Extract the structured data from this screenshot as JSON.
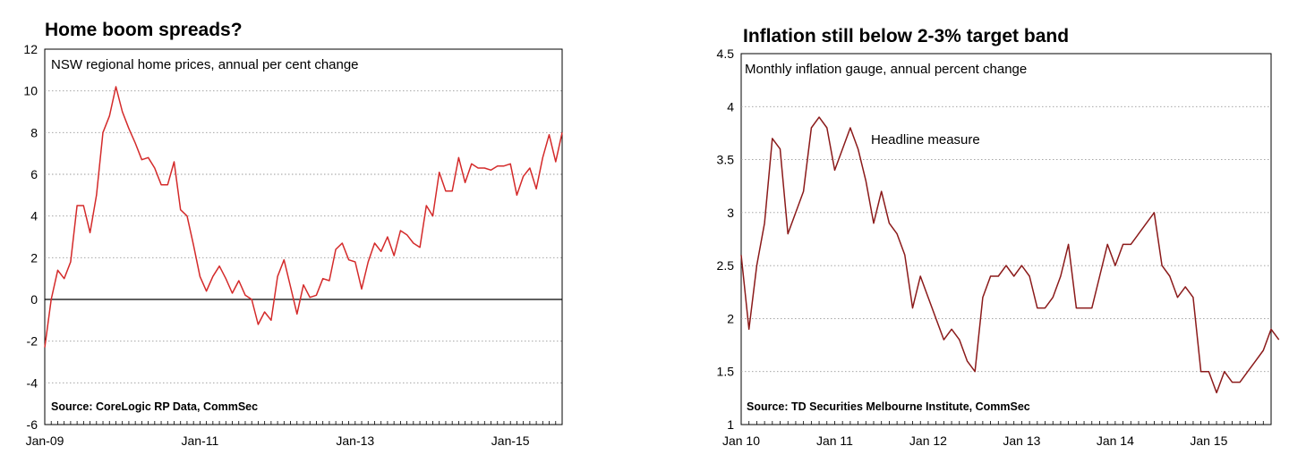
{
  "chart_data": [
    {
      "type": "line",
      "title": "Home boom spreads?",
      "subtitle": "NSW regional home prices, annual per cent change",
      "source": "Source: CoreLogic RP Data, CommSec",
      "xlabel": "",
      "ylabel": "",
      "ylim": [
        -6,
        12
      ],
      "y_ticks": [
        "12",
        "10",
        "8",
        "6",
        "4",
        "2",
        "0",
        "-2",
        "-4",
        "-6"
      ],
      "x_ticks": [
        "Jan-09",
        "Jan-11",
        "Jan-13",
        "Jan-15"
      ],
      "x_range": [
        "2009-01",
        "2015-09"
      ],
      "grid": "horizontal dotted",
      "line_color": "#d42a2a",
      "series": [
        {
          "values": [
            -2.3,
            0.0,
            1.4,
            1.0,
            1.8,
            4.5,
            4.5,
            3.2,
            5.0,
            8.0,
            8.8,
            10.2,
            9.0,
            8.2,
            7.5,
            6.7,
            6.8,
            6.3,
            5.5,
            5.5,
            6.6,
            4.3,
            4.0,
            2.6,
            1.1,
            0.4,
            1.1,
            1.6,
            1.0,
            0.3,
            0.9,
            0.2,
            0.0,
            -1.2,
            -0.6,
            -1.0,
            1.1,
            1.9,
            0.6,
            -0.7,
            0.7,
            0.1,
            0.2,
            1.0,
            0.9,
            2.4,
            2.7,
            1.9,
            1.8,
            0.5,
            1.8,
            2.7,
            2.3,
            3.0,
            2.1,
            3.3,
            3.1,
            2.7,
            2.5,
            4.5,
            4.0,
            6.1,
            5.2,
            5.2,
            6.8,
            5.6,
            6.5,
            6.3,
            6.3,
            6.2,
            6.4,
            6.4,
            6.5,
            5.0,
            5.9,
            6.3,
            5.3,
            6.8,
            7.9,
            6.6,
            8.0
          ]
        }
      ]
    },
    {
      "type": "line",
      "title": "Inflation still below 2-3% target band",
      "subtitle": "Monthly inflation gauge, annual percent change",
      "source": "Source: TD Securities Melbourne Institute, CommSec",
      "annotation": "Headline measure",
      "xlabel": "",
      "ylabel": "",
      "ylim": [
        1,
        4.5
      ],
      "y_ticks": [
        "4.5",
        "4",
        "3.5",
        "3",
        "2.5",
        "2",
        "1.5",
        "1"
      ],
      "x_ticks": [
        "Jan 10",
        "Jan 11",
        "Jan 12",
        "Jan 13",
        "Jan 14",
        "Jan 15"
      ],
      "x_range": [
        "2010-01",
        "2015-09"
      ],
      "grid": "horizontal dotted",
      "line_color": "#8b1a1a",
      "series": [
        {
          "name": "Headline measure",
          "values": [
            2.6,
            1.9,
            2.5,
            2.9,
            3.7,
            3.6,
            2.8,
            3.0,
            3.2,
            3.8,
            3.9,
            3.8,
            3.4,
            3.6,
            3.8,
            3.6,
            3.3,
            2.9,
            3.2,
            2.9,
            2.8,
            2.6,
            2.1,
            2.4,
            2.2,
            2.0,
            1.8,
            1.9,
            1.8,
            1.6,
            1.5,
            2.2,
            2.4,
            2.4,
            2.5,
            2.4,
            2.5,
            2.4,
            2.1,
            2.1,
            2.2,
            2.4,
            2.7,
            2.1,
            2.1,
            2.1,
            2.4,
            2.7,
            2.5,
            2.7,
            2.7,
            2.8,
            2.9,
            3.0,
            2.5,
            2.4,
            2.2,
            2.3,
            2.2,
            1.5,
            1.5,
            1.3,
            1.5,
            1.4,
            1.4,
            1.5,
            1.6,
            1.7,
            1.9,
            1.8
          ]
        }
      ]
    }
  ]
}
